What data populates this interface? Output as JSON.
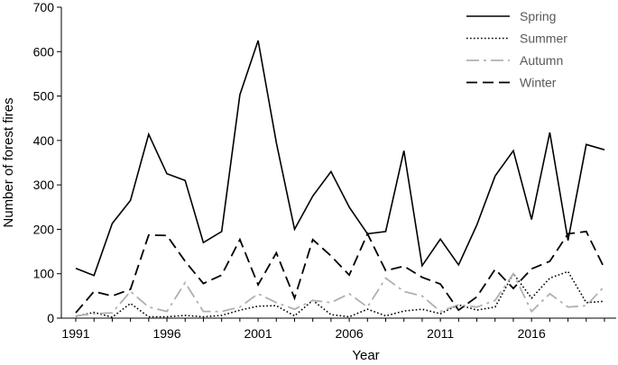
{
  "chart_data": {
    "type": "line",
    "title": "",
    "xlabel": "Year",
    "ylabel": "Number of forest fires",
    "xlim": [
      1991,
      2020
    ],
    "ylim": [
      0,
      700
    ],
    "x_ticks": [
      "1991",
      "1996",
      "2001",
      "2006",
      "2011",
      "2016"
    ],
    "y_ticks": [
      "0",
      "100",
      "200",
      "300",
      "400",
      "500",
      "600",
      "700"
    ],
    "grid": false,
    "legend_position": "top-right",
    "x": [
      1991,
      1992,
      1993,
      1994,
      1995,
      1996,
      1997,
      1998,
      1999,
      2000,
      2001,
      2002,
      2003,
      2004,
      2005,
      2006,
      2007,
      2008,
      2009,
      2010,
      2011,
      2012,
      2013,
      2014,
      2015,
      2016,
      2017,
      2018,
      2019,
      2020
    ],
    "series": [
      {
        "name": "Spring",
        "color": "#000000",
        "dash": "solid",
        "values": [
          112,
          96,
          213,
          265,
          414,
          325,
          310,
          170,
          195,
          503,
          625,
          395,
          200,
          275,
          330,
          250,
          190,
          195,
          377,
          118,
          178,
          120,
          210,
          320,
          377,
          222,
          418,
          175,
          391,
          379
        ]
      },
      {
        "name": "Summer",
        "color": "#000000",
        "dash": "dotted",
        "values": [
          4,
          13,
          2,
          33,
          3,
          3,
          6,
          3,
          6,
          18,
          27,
          28,
          5,
          40,
          8,
          3,
          20,
          5,
          16,
          20,
          10,
          30,
          18,
          25,
          100,
          45,
          90,
          105,
          35,
          38
        ]
      },
      {
        "name": "Autumn",
        "color": "#b0b0b0",
        "dash": "dashdot",
        "values": [
          5,
          10,
          12,
          60,
          25,
          15,
          80,
          15,
          15,
          25,
          55,
          35,
          20,
          40,
          35,
          55,
          25,
          90,
          60,
          50,
          15,
          30,
          25,
          40,
          100,
          15,
          55,
          25,
          28,
          72
        ]
      },
      {
        "name": "Winter",
        "color": "#000000",
        "dash": "dashed",
        "values": [
          12,
          60,
          50,
          65,
          187,
          186,
          128,
          78,
          97,
          177,
          75,
          147,
          45,
          177,
          140,
          97,
          190,
          107,
          117,
          92,
          77,
          18,
          48,
          110,
          67,
          111,
          128,
          190,
          195,
          112
        ]
      }
    ]
  }
}
